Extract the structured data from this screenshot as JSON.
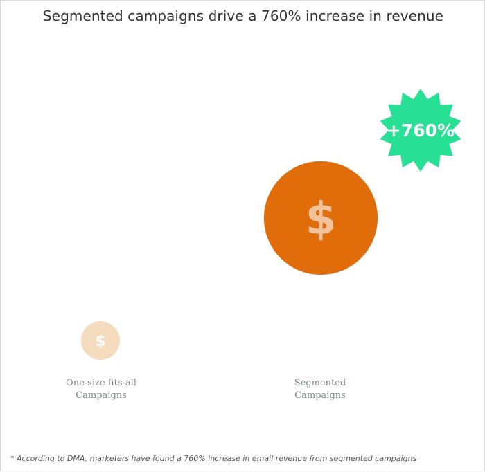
{
  "title": "Segmented campaigns drive a 760% increase in revenue",
  "badge": "+760%",
  "footnote": "* According to DMA, marketers have found a 760% increase in email revenue from segmented campaigns",
  "colors": {
    "big_circle": "#e06c0a",
    "big_symbol": "#f2c29c",
    "small_circle": "#f5dcbf",
    "small_symbol": "#ffffff",
    "badge": "#27df95"
  },
  "icons": {
    "currency": "dollar-sign-icon",
    "badge": "starburst-badge-icon"
  },
  "chart_data": {
    "type": "bubble",
    "title": "Segmented campaigns drive a 760% increase in revenue",
    "categories": [
      "One-size-fits-all Campaigns",
      "Segmented Campaigns"
    ],
    "category_lines": [
      [
        "One-size-fits-all",
        "Campaigns"
      ],
      [
        "Segmented",
        "Campaigns"
      ]
    ],
    "values": [
      1,
      8.6
    ],
    "increase_percent": 760,
    "annotation": "+760%",
    "symbol": "$"
  }
}
